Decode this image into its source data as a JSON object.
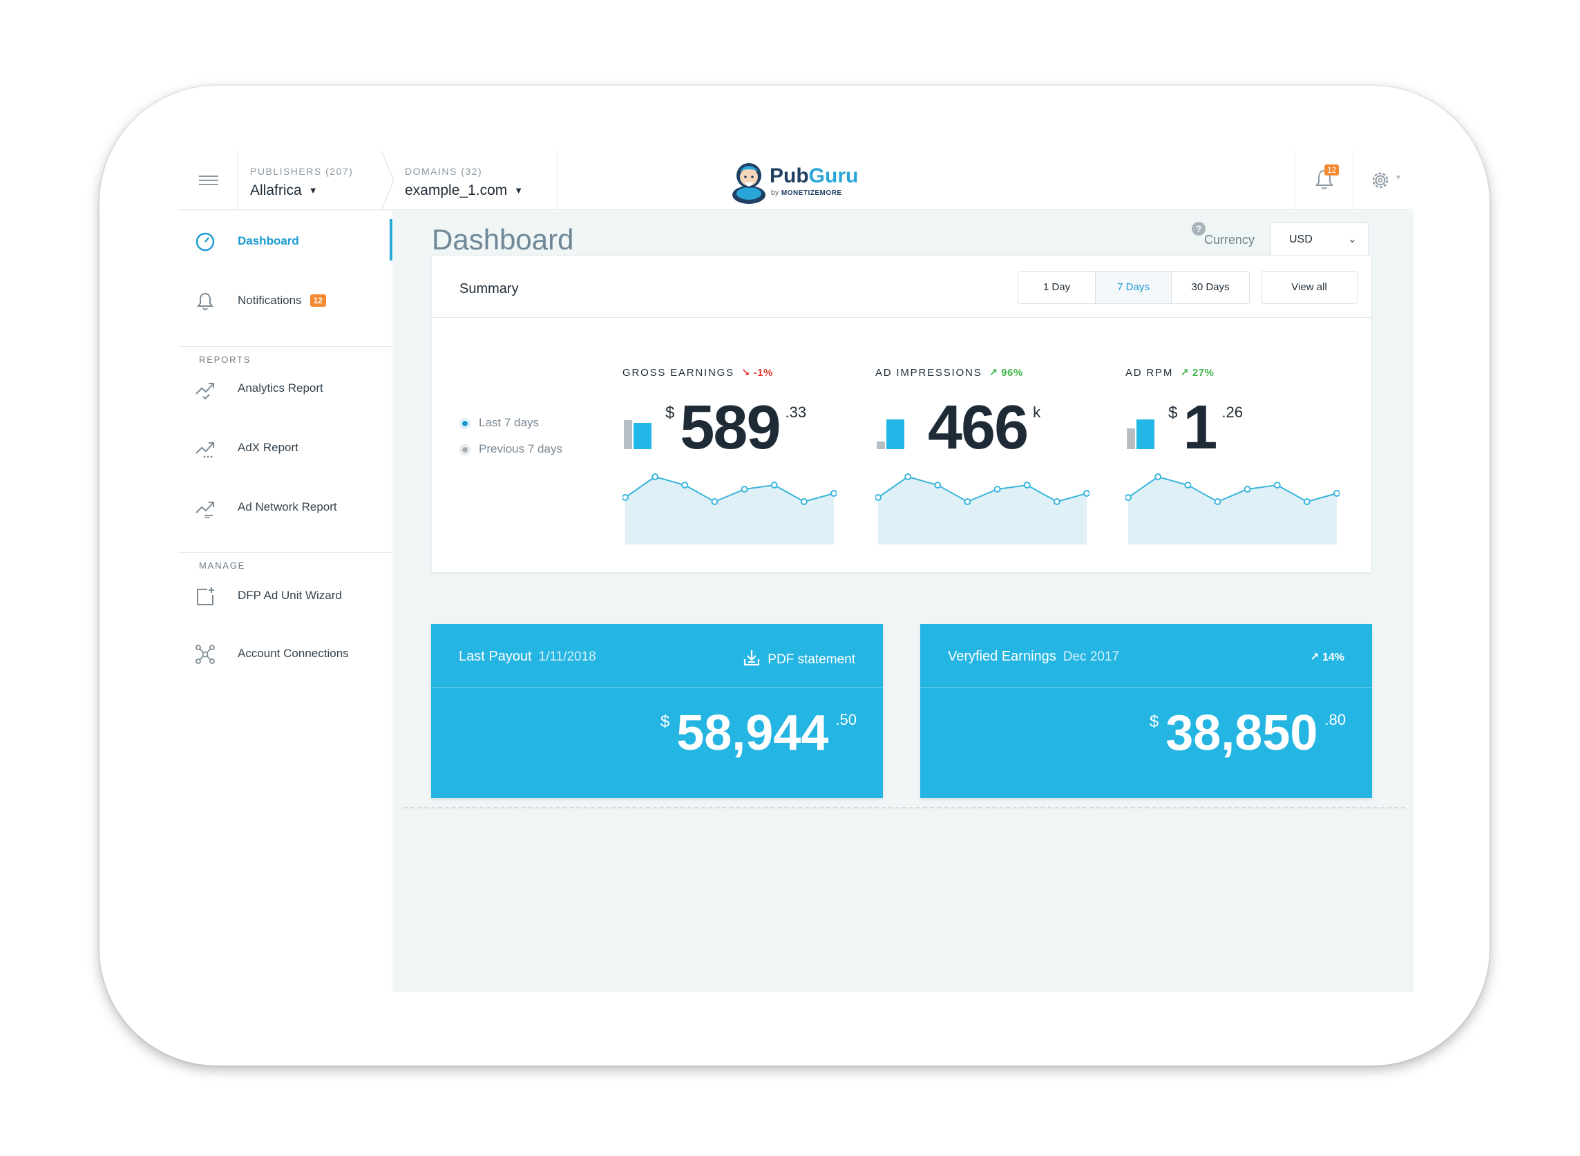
{
  "header": {
    "menu_icon": "hamburger-icon",
    "publishers_label": "PUBLISHERS (207)",
    "publishers_value": "Allafrica",
    "domains_label": "DOMAINS (32)",
    "domains_value": "example_1.com",
    "logo_text_pub": "Pub",
    "logo_text_guru": "Guru",
    "logo_sub_by": "by ",
    "logo_sub_brand": "MONETIZEMORE",
    "notification_count": "12",
    "settings_icon": "gear-icon"
  },
  "sidebar": {
    "items": [
      {
        "label": "Dashboard",
        "icon": "speedometer-icon"
      },
      {
        "label": "Notifications",
        "icon": "bell-icon",
        "badge": "12"
      }
    ],
    "reports_label": "REPORTS",
    "reports": [
      {
        "label": "Analytics Report",
        "icon": "trend-icon"
      },
      {
        "label": "AdX Report",
        "icon": "trend-icon"
      },
      {
        "label": "Ad Network Report",
        "icon": "trend-icon"
      }
    ],
    "manage_label": "MANAGE",
    "manage": [
      {
        "label": "DFP Ad Unit Wizard",
        "icon": "add-box-icon"
      },
      {
        "label": "Account Connections",
        "icon": "network-icon"
      }
    ]
  },
  "main": {
    "title": "Dashboard",
    "help": "?",
    "currency_label": "Currency",
    "currency_value": "USD",
    "summary": {
      "title": "Summary",
      "ranges": [
        "1 Day",
        "7 Days",
        "30 Days"
      ],
      "selected_range": "7 Days",
      "view_all": "View all",
      "legend": [
        "Last 7 days",
        "Previous 7 days"
      ],
      "metrics": [
        {
          "title": "GROSS EARNINGS",
          "delta": "↘ -1%",
          "direction": "down",
          "currency": "$",
          "value": "589",
          "suffix": ".33",
          "spark": [
            4,
            9,
            7,
            3,
            6,
            7,
            3,
            5
          ],
          "bar_prev": 0.67,
          "bar_cur": 0.61
        },
        {
          "title": "AD IMPRESSIONS",
          "delta": "↗ 96%",
          "direction": "up",
          "currency": "",
          "value": "466",
          "suffix": "k",
          "spark": [
            4,
            9,
            7,
            3,
            6,
            7,
            3,
            5
          ],
          "bar_prev": 0.17,
          "bar_cur": 0.69
        },
        {
          "title": "AD RPM",
          "delta": "↗ 27%",
          "direction": "up",
          "currency": "$",
          "value": "1",
          "suffix": ".26",
          "spark": [
            4,
            9,
            7,
            3,
            6,
            7,
            3,
            5
          ],
          "bar_prev": 0.49,
          "bar_cur": 0.69
        }
      ]
    },
    "payout": {
      "title": "Last Payout",
      "date": "1/11/2018",
      "action": "PDF statement",
      "action_icon": "download-icon",
      "currency": "$",
      "amount": "58,944",
      "cents": ".50"
    },
    "verified": {
      "title": "Veryfied Earnings",
      "period": "Dec 2017",
      "delta": "↗ 14%",
      "currency": "$",
      "amount": "38,850",
      "cents": ".80"
    }
  },
  "colors": {
    "accent": "#26a8d8",
    "card_blue": "#25b5e3",
    "badge_orange": "#f5892f",
    "down_red": "#e53935",
    "up_green": "#3fb54a",
    "spark_line": "#3ab5dc",
    "spark_fill": "#dff0f7"
  }
}
